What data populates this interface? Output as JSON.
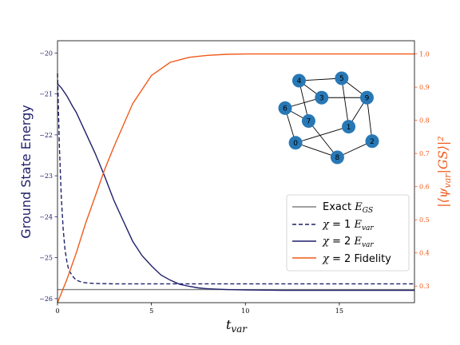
{
  "chart_data": {
    "type": "line",
    "xlabel": "t_var",
    "ylabel_left": "Ground State Energy",
    "ylabel_right": "|⟨ψ_var|GS⟩|²",
    "xlim": [
      0,
      19
    ],
    "ylim_left": [
      -26.1,
      -19.7
    ],
    "ylim_right": [
      0.25,
      1.04
    ],
    "x_ticks": [
      "0",
      "5",
      "10",
      "15"
    ],
    "y_ticks_left": [
      "−20",
      "−21",
      "−22",
      "−23",
      "−24",
      "−25",
      "−26"
    ],
    "y_ticks_right": [
      "0.3",
      "0.4",
      "0.5",
      "0.6",
      "0.7",
      "0.8",
      "0.9",
      "1.0"
    ],
    "legend": {
      "position": "lower-right",
      "entries": [
        {
          "label": "Exact E_GS",
          "color": "#808080",
          "dash": "solid"
        },
        {
          "label": "χ = 1 E_var",
          "color": "#1f1f6b",
          "dash": "dashed"
        },
        {
          "label": "χ = 2 E_var",
          "color": "#1f1f6b",
          "dash": "solid"
        },
        {
          "label": "χ = 2 Fidelity",
          "color": "#f05a1a",
          "dash": "solid"
        }
      ]
    },
    "series": [
      {
        "axis": "left",
        "color": "#808080",
        "dash": "solid",
        "x": [
          0,
          19
        ],
        "y": [
          -25.78,
          -25.78
        ]
      },
      {
        "axis": "left",
        "color": "#1f1f6b",
        "dash": "dashed",
        "x": [
          0,
          0.1,
          0.2,
          0.3,
          0.4,
          0.5,
          0.6,
          0.8,
          1.0,
          1.3,
          1.6,
          2.0,
          2.5,
          3.0,
          4.0,
          5.0,
          19
        ],
        "y": [
          -20.5,
          -22.3,
          -23.5,
          -24.3,
          -24.8,
          -25.1,
          -25.3,
          -25.45,
          -25.55,
          -25.6,
          -25.62,
          -25.63,
          -25.635,
          -25.64,
          -25.64,
          -25.64,
          -25.64
        ]
      },
      {
        "axis": "left",
        "color": "#1f1f6b",
        "dash": "solid",
        "x": [
          0,
          0.2,
          0.5,
          0.8,
          1.0,
          1.5,
          2.0,
          2.5,
          3.0,
          3.5,
          4.0,
          4.5,
          5.0,
          5.5,
          6.0,
          6.5,
          7.0,
          7.5,
          8.0,
          9.0,
          10.0,
          12.0,
          15.0,
          19.0
        ],
        "y": [
          -20.75,
          -20.85,
          -21.05,
          -21.3,
          -21.45,
          -21.95,
          -22.45,
          -23.0,
          -23.6,
          -24.1,
          -24.6,
          -24.95,
          -25.2,
          -25.42,
          -25.55,
          -25.65,
          -25.7,
          -25.74,
          -25.76,
          -25.78,
          -25.79,
          -25.8,
          -25.8,
          -25.8
        ]
      },
      {
        "axis": "right",
        "color": "#f05a1a",
        "dash": "solid",
        "x": [
          0,
          0.5,
          1.0,
          1.5,
          2.0,
          2.5,
          3.0,
          4.0,
          5.0,
          6.0,
          7.0,
          8.0,
          9.0,
          10.0,
          12.0,
          15.0,
          19.0
        ],
        "y": [
          0.25,
          0.32,
          0.4,
          0.49,
          0.57,
          0.65,
          0.72,
          0.85,
          0.935,
          0.975,
          0.99,
          0.996,
          0.999,
          1.0,
          1.0,
          1.0,
          1.0
        ]
      }
    ],
    "inset_graph": {
      "node_color": "#2878b5",
      "nodes": [
        {
          "id": "0",
          "x": 0.12,
          "y": 0.8
        },
        {
          "id": "1",
          "x": 0.73,
          "y": 0.6
        },
        {
          "id": "2",
          "x": 1.0,
          "y": 0.78
        },
        {
          "id": "3",
          "x": 0.42,
          "y": 0.24
        },
        {
          "id": "4",
          "x": 0.16,
          "y": 0.03
        },
        {
          "id": "5",
          "x": 0.65,
          "y": 0.0
        },
        {
          "id": "6",
          "x": 0.0,
          "y": 0.37
        },
        {
          "id": "7",
          "x": 0.27,
          "y": 0.53
        },
        {
          "id": "8",
          "x": 0.6,
          "y": 0.98
        },
        {
          "id": "9",
          "x": 0.94,
          "y": 0.24
        }
      ],
      "edges": [
        [
          "4",
          "5"
        ],
        [
          "5",
          "9"
        ],
        [
          "4",
          "7"
        ],
        [
          "4",
          "3"
        ],
        [
          "6",
          "3"
        ],
        [
          "6",
          "7"
        ],
        [
          "6",
          "0"
        ],
        [
          "3",
          "9"
        ],
        [
          "5",
          "1"
        ],
        [
          "9",
          "1"
        ],
        [
          "9",
          "2"
        ],
        [
          "7",
          "8"
        ],
        [
          "0",
          "1"
        ],
        [
          "0",
          "8"
        ],
        [
          "8",
          "2"
        ]
      ]
    }
  }
}
